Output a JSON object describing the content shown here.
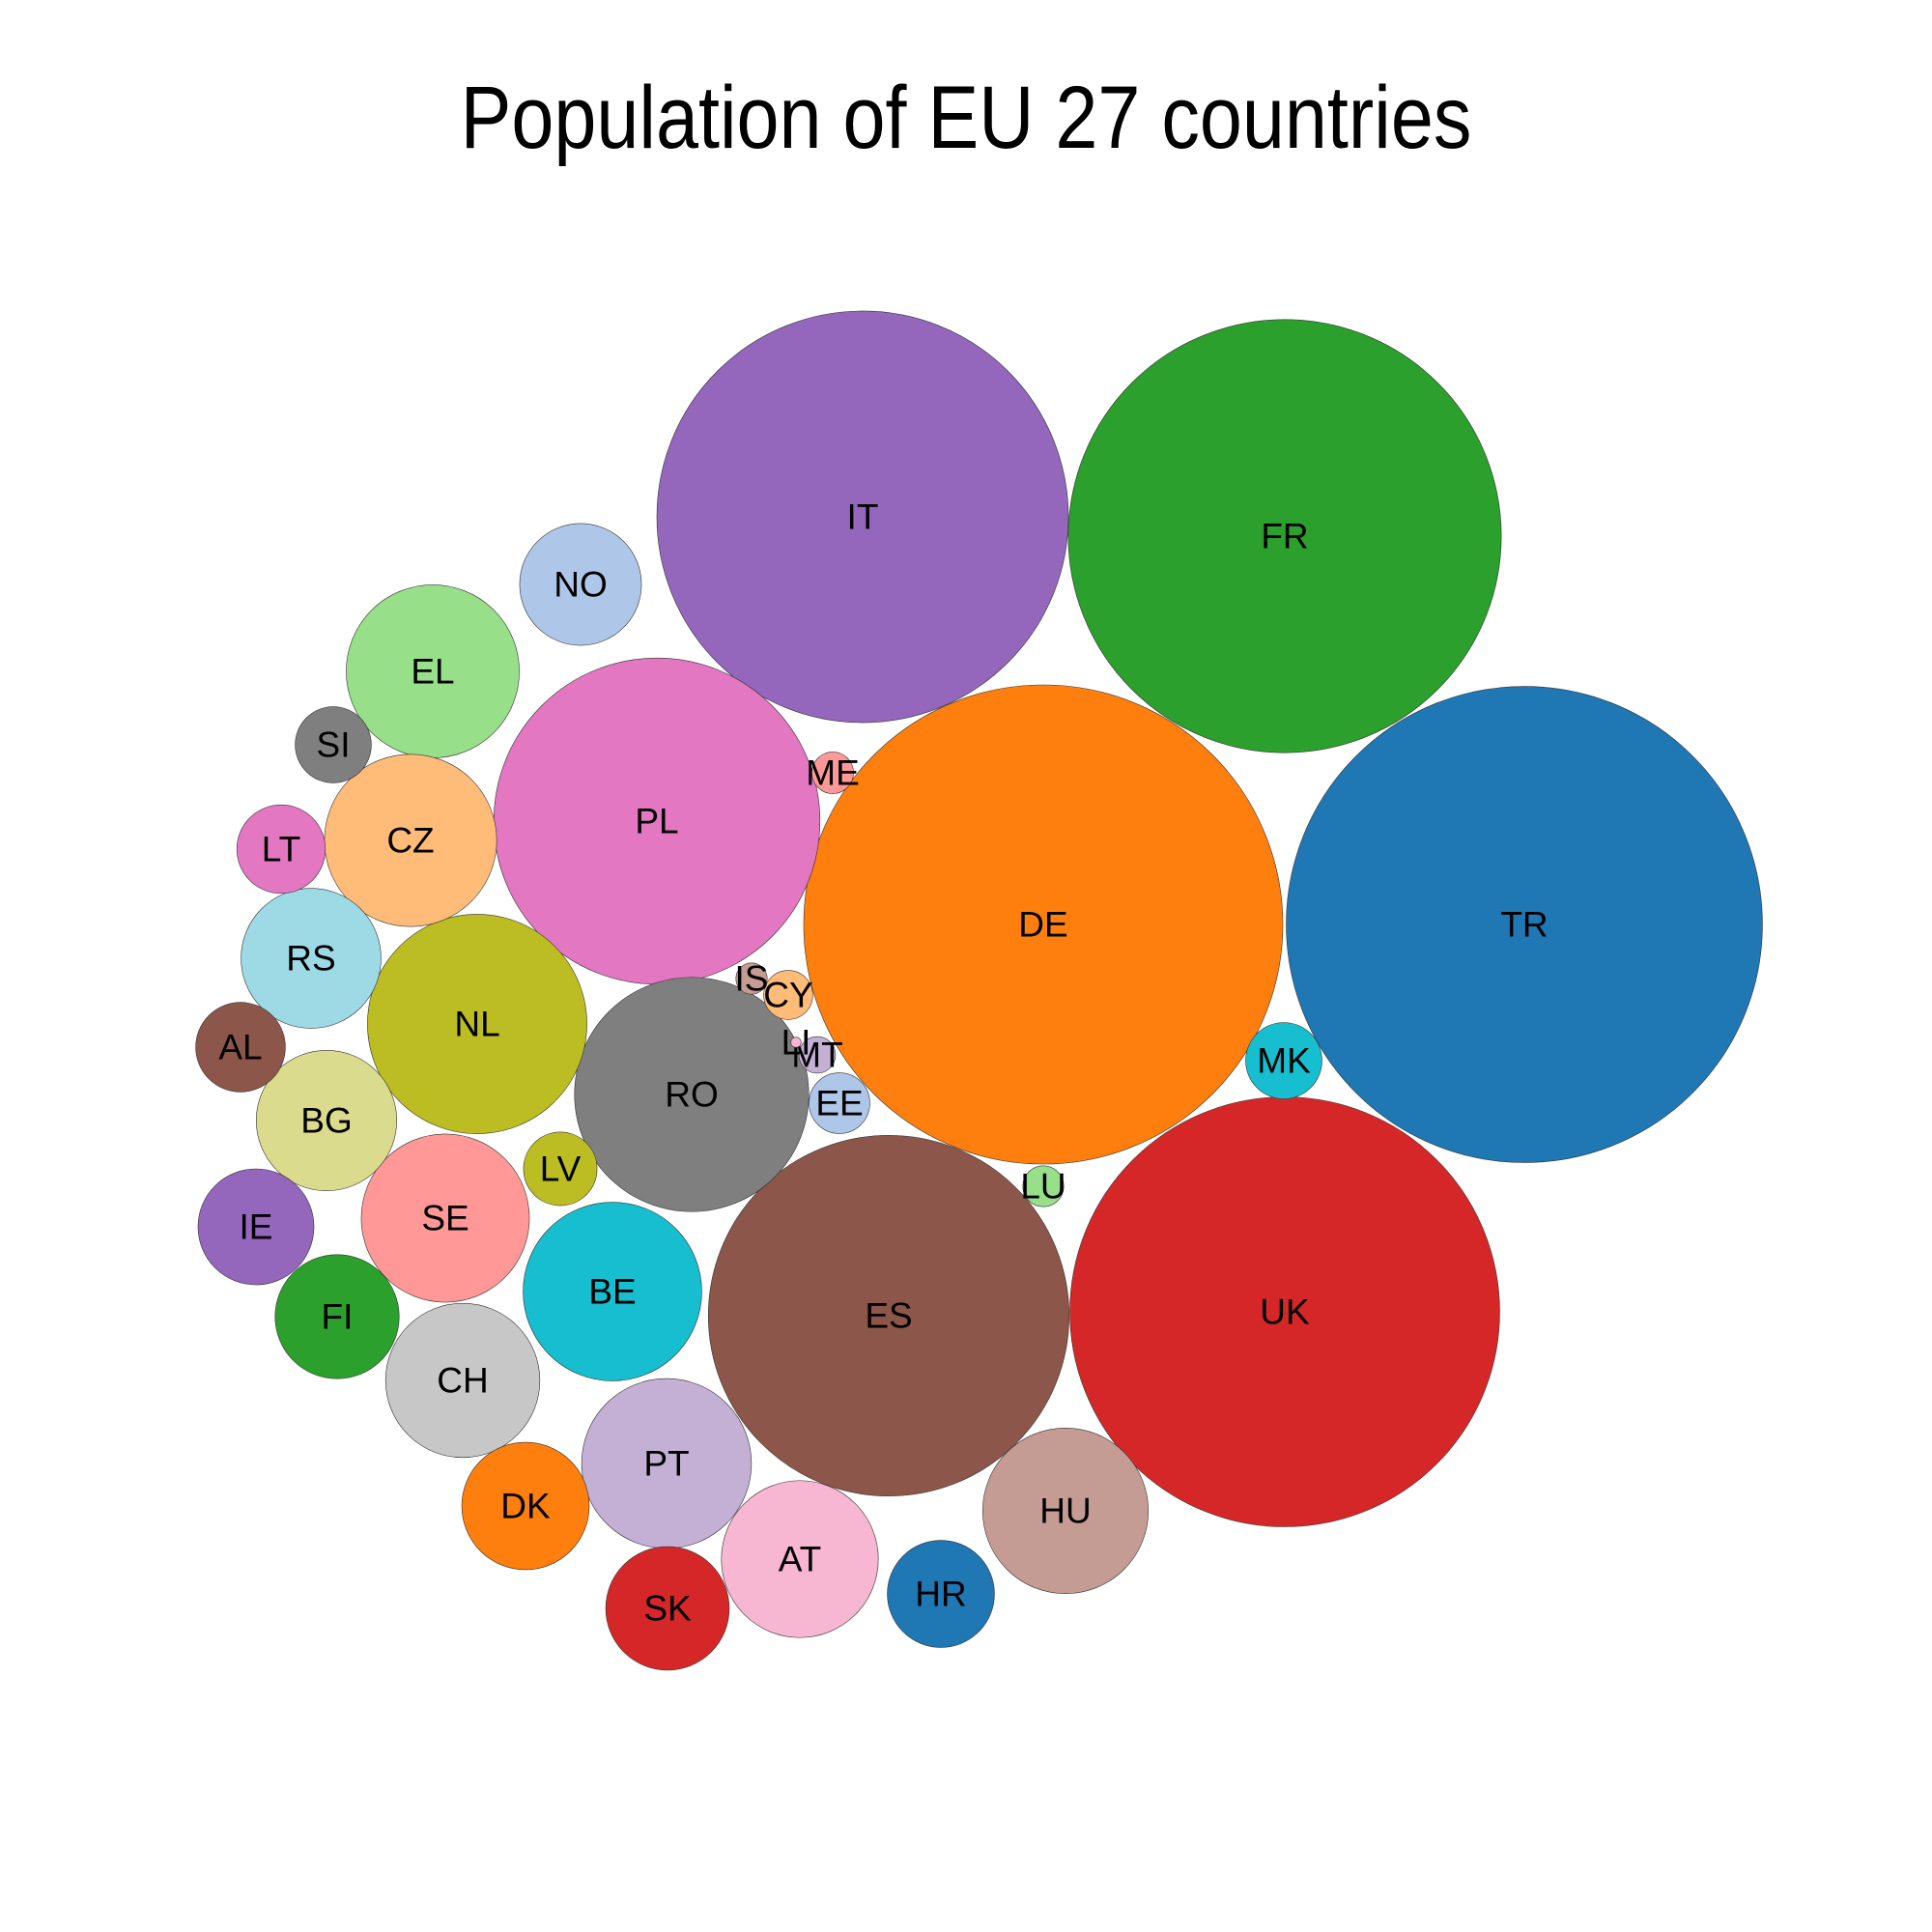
{
  "chart_data": {
    "type": "bubble",
    "title": "Population of EU 27 countries",
    "legend": "none",
    "grid": false,
    "countries": [
      {
        "code": "DE",
        "population": 82000000,
        "color": "#ff7f0e"
      },
      {
        "code": "TR",
        "population": 81000000,
        "color": "#1f77b4"
      },
      {
        "code": "FR",
        "population": 67000000,
        "color": "#2ca02c"
      },
      {
        "code": "UK",
        "population": 66000000,
        "color": "#d62728"
      },
      {
        "code": "IT",
        "population": 60500000,
        "color": "#9467bd"
      },
      {
        "code": "ES",
        "population": 46500000,
        "color": "#8c564b"
      },
      {
        "code": "PL",
        "population": 38000000,
        "color": "#e377c2"
      },
      {
        "code": "RO",
        "population": 19600000,
        "color": "#7f7f7f"
      },
      {
        "code": "NL",
        "population": 17200000,
        "color": "#bcbd22"
      },
      {
        "code": "BE",
        "population": 11400000,
        "color": "#17becf"
      },
      {
        "code": "EL",
        "population": 10700000,
        "color": "#98df8a"
      },
      {
        "code": "CZ",
        "population": 10600000,
        "color": "#ffbb78"
      },
      {
        "code": "PT",
        "population": 10300000,
        "color": "#c5b0d5"
      },
      {
        "code": "SE",
        "population": 10100000,
        "color": "#ff9896"
      },
      {
        "code": "HU",
        "population": 9800000,
        "color": "#c49c94"
      },
      {
        "code": "AT",
        "population": 8800000,
        "color": "#f7b6d2"
      },
      {
        "code": "CH",
        "population": 8500000,
        "color": "#c7c7c7"
      },
      {
        "code": "BG",
        "population": 7050000,
        "color": "#dbdb8d"
      },
      {
        "code": "RS",
        "population": 7000000,
        "color": "#9edae5"
      },
      {
        "code": "DK",
        "population": 5800000,
        "color": "#ff7f0e"
      },
      {
        "code": "FI",
        "population": 5500000,
        "color": "#2ca02c"
      },
      {
        "code": "SK",
        "population": 5450000,
        "color": "#d62728"
      },
      {
        "code": "NO",
        "population": 5300000,
        "color": "#aec7e8"
      },
      {
        "code": "IE",
        "population": 4800000,
        "color": "#9467bd"
      },
      {
        "code": "HR",
        "population": 4100000,
        "color": "#1f77b4"
      },
      {
        "code": "AL",
        "population": 2870000,
        "color": "#8c564b"
      },
      {
        "code": "LT",
        "population": 2800000,
        "color": "#e377c2"
      },
      {
        "code": "SI",
        "population": 2070000,
        "color": "#7f7f7f"
      },
      {
        "code": "LV",
        "population": 1930000,
        "color": "#bcbd22"
      },
      {
        "code": "MK",
        "population": 2080000,
        "color": "#17becf"
      },
      {
        "code": "EE",
        "population": 1320000,
        "color": "#aec7e8"
      },
      {
        "code": "CY",
        "population": 860000,
        "color": "#ffbb78"
      },
      {
        "code": "LU",
        "population": 600000,
        "color": "#98df8a"
      },
      {
        "code": "ME",
        "population": 620000,
        "color": "#ff9896"
      },
      {
        "code": "MT",
        "population": 480000,
        "color": "#c5b0d5"
      },
      {
        "code": "IS",
        "population": 350000,
        "color": "#c49c94"
      },
      {
        "code": "LI",
        "population": 38000,
        "color": "#f7b6d2"
      }
    ]
  }
}
